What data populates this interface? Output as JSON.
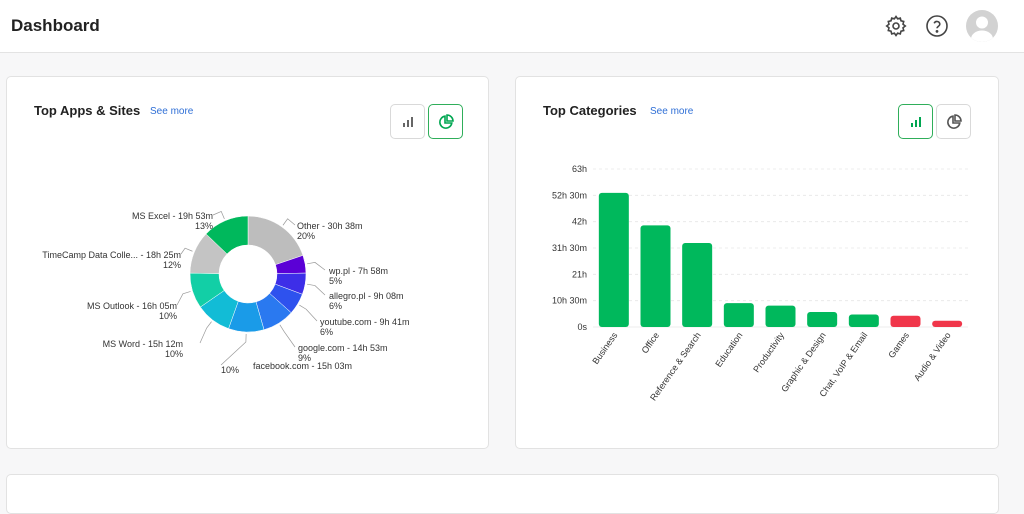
{
  "header": {
    "title": "Dashboard",
    "icons": [
      "gear-icon",
      "help-icon",
      "avatar"
    ]
  },
  "top_apps": {
    "title": "Top Apps & Sites",
    "see_more": "See more",
    "toggles": [
      {
        "icon": "bar-chart-icon",
        "active": false
      },
      {
        "icon": "pie-chart-icon",
        "active": true
      }
    ]
  },
  "top_categories": {
    "title": "Top Categories",
    "see_more": "See more",
    "toggles": [
      {
        "icon": "bar-chart-icon",
        "active": true
      },
      {
        "icon": "pie-chart-icon",
        "active": false
      }
    ]
  },
  "colors": {
    "green": "#00b85c",
    "red": "#f0364a",
    "accent_border": "#2fae5a",
    "link": "#2f6fd6"
  },
  "chart_data": [
    {
      "type": "pie",
      "donut": true,
      "slices": [
        {
          "name": "Other",
          "time": "30h 38m",
          "percent": "20%",
          "value": 20,
          "color": "#bdbdbd"
        },
        {
          "name": "wp.pl",
          "time": "7h 58m",
          "percent": "5%",
          "value": 5,
          "color": "#5b00d6"
        },
        {
          "name": "allegro.pl",
          "time": "9h 08m",
          "percent": "6%",
          "value": 6,
          "color": "#3d2ee8"
        },
        {
          "name": "youtube.com",
          "time": "9h 41m",
          "percent": "6%",
          "value": 6,
          "color": "#2e52ee"
        },
        {
          "name": "google.com",
          "time": "14h 53m",
          "percent": "9%",
          "value": 9,
          "color": "#2a79f0"
        },
        {
          "name": "facebook.com",
          "time": "15h 03m",
          "percent": "10%",
          "value": 10,
          "color": "#1a9be8"
        },
        {
          "name": "MS Word",
          "time": "15h 12m",
          "percent": "10%",
          "value": 10,
          "color": "#12bcd6"
        },
        {
          "name": "MS Outlook",
          "time": "16h 05m",
          "percent": "10%",
          "value": 10,
          "color": "#12cfa6"
        },
        {
          "name": "TimeCamp Data Colle...",
          "time": "18h 25m",
          "percent": "12%",
          "value": 12,
          "color": "#c4c4c4"
        },
        {
          "name": "MS Excel",
          "time": "19h 53m",
          "percent": "13%",
          "value": 13,
          "color": "#00b85c"
        }
      ]
    },
    {
      "type": "bar",
      "categories": [
        "Business",
        "Office",
        "Reference & Search",
        "Education",
        "Productivity",
        "Graphic & Design",
        "Chat, VoIP & Email",
        "Games",
        "Audio & Video"
      ],
      "values": [
        53.5,
        40.5,
        33.5,
        9.5,
        8.5,
        6,
        5,
        4.5,
        2.5
      ],
      "unit": "h",
      "colors": [
        "#00b85c",
        "#00b85c",
        "#00b85c",
        "#00b85c",
        "#00b85c",
        "#00b85c",
        "#00b85c",
        "#f0364a",
        "#f0364a"
      ],
      "yticks": [
        "0s",
        "10h 30m",
        "21h",
        "31h 30m",
        "42h",
        "52h 30m",
        "63h"
      ],
      "ylim": [
        0,
        63
      ]
    }
  ]
}
